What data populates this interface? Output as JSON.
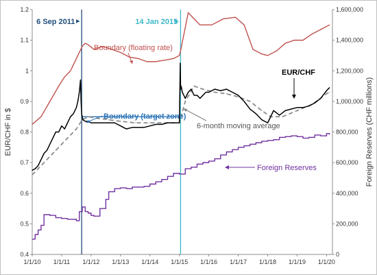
{
  "chart_data": {
    "type": "line",
    "xlabel": "",
    "ylabel": "EUR/CHF in $",
    "y2label": "Foreign Reserves (CHF millions)",
    "ylim": [
      0.4,
      1.2
    ],
    "y2lim": [
      0,
      1600000
    ],
    "xlim": [
      2010.0,
      2020.2
    ],
    "x_ticks": [
      "1/1/10",
      "1/1/11",
      "1/1/12",
      "1/1/13",
      "1/1/14",
      "1/1/15",
      "1/1/16",
      "1/1/17",
      "1/1/18",
      "1/1/19",
      "1/1/20"
    ],
    "y_ticks": [
      "0.4",
      "0.5",
      "0.6",
      "0.7",
      "0.8",
      "0.9",
      "1",
      "1.1",
      "1.2"
    ],
    "y2_ticks": [
      "0",
      "200,000",
      "400,000",
      "600,000",
      "800,000",
      "1,000,000",
      "1,200,000",
      "1,400,000",
      "1,600,000"
    ],
    "grid": false,
    "events": [
      {
        "label": "6 Sep 2011",
        "date": 2011.68,
        "color": "#1f4e79"
      },
      {
        "label": "14 Jan 2015",
        "date": 2015.04,
        "color": "#3bb7c9"
      }
    ],
    "annotations": {
      "boundary_floating": "Boundary (floating rate)",
      "boundary_target": "Boundary (target zone)",
      "moving_average": "6-month moving average",
      "eurchf": "EUR/CHF",
      "reserves": "Foreign Reserves"
    },
    "series": [
      {
        "name": "EUR/CHF",
        "axis": "left",
        "color": "#000000",
        "x": [
          2010.0,
          2010.1,
          2010.2,
          2010.3,
          2010.4,
          2010.5,
          2010.6,
          2010.7,
          2010.8,
          2010.9,
          2011.0,
          2011.1,
          2011.2,
          2011.3,
          2011.4,
          2011.5,
          2011.55,
          2011.6,
          2011.64,
          2011.66,
          2011.68,
          2011.72,
          2011.8,
          2011.9,
          2012.0,
          2012.2,
          2012.4,
          2012.6,
          2012.8,
          2013.0,
          2013.2,
          2013.4,
          2013.6,
          2013.8,
          2014.0,
          2014.2,
          2014.4,
          2014.6,
          2014.8,
          2015.0,
          2015.03,
          2015.04,
          2015.06,
          2015.1,
          2015.2,
          2015.3,
          2015.4,
          2015.5,
          2015.6,
          2015.7,
          2015.8,
          2015.9,
          2016.0,
          2016.2,
          2016.4,
          2016.6,
          2016.8,
          2017.0,
          2017.2,
          2017.4,
          2017.6,
          2017.8,
          2018.0,
          2018.2,
          2018.4,
          2018.6,
          2018.8,
          2019.0,
          2019.2,
          2019.4,
          2019.6,
          2019.8,
          2020.0,
          2020.1
        ],
        "values": [
          0.675,
          0.68,
          0.69,
          0.71,
          0.73,
          0.74,
          0.76,
          0.78,
          0.8,
          0.8,
          0.82,
          0.81,
          0.83,
          0.85,
          0.86,
          0.88,
          0.9,
          0.93,
          0.97,
          0.9,
          0.86,
          0.84,
          0.835,
          0.835,
          0.83,
          0.83,
          0.83,
          0.83,
          0.83,
          0.82,
          0.81,
          0.815,
          0.815,
          0.815,
          0.82,
          0.825,
          0.825,
          0.83,
          0.83,
          0.83,
          1.025,
          0.94,
          0.95,
          0.93,
          0.91,
          0.93,
          0.94,
          0.92,
          0.92,
          0.91,
          0.92,
          0.93,
          0.93,
          0.94,
          0.935,
          0.94,
          0.93,
          0.92,
          0.9,
          0.875,
          0.86,
          0.84,
          0.83,
          0.87,
          0.855,
          0.87,
          0.875,
          0.88,
          0.88,
          0.885,
          0.895,
          0.91,
          0.935,
          0.945
        ]
      },
      {
        "name": "6-month moving average",
        "axis": "left",
        "color": "#8c8c8c",
        "dashed": true,
        "x": [
          2010.0,
          2010.4,
          2010.8,
          2011.2,
          2011.5,
          2011.7,
          2011.9,
          2012.2,
          2012.6,
          2013.0,
          2013.5,
          2014.0,
          2014.5,
          2015.0,
          2015.2,
          2015.5,
          2015.8,
          2016.2,
          2016.6,
          2017.0,
          2017.4,
          2017.8,
          2018.1,
          2018.5,
          2019.0,
          2019.5,
          2020.0,
          2020.1
        ],
        "values": [
          0.66,
          0.7,
          0.74,
          0.78,
          0.81,
          0.84,
          0.85,
          0.845,
          0.84,
          0.835,
          0.83,
          0.83,
          0.83,
          0.83,
          0.9,
          0.95,
          0.94,
          0.93,
          0.925,
          0.915,
          0.9,
          0.87,
          0.85,
          0.85,
          0.87,
          0.89,
          0.925,
          0.93
        ]
      },
      {
        "name": "Boundary (floating rate)",
        "axis": "left",
        "color": "#c0504d",
        "x": [
          2010.0,
          2010.3,
          2010.6,
          2010.9,
          2011.1,
          2011.3,
          2011.5,
          2011.7,
          2011.8,
          2011.9,
          2012.1,
          2012.4,
          2012.7,
          2013.0,
          2013.3,
          2013.6,
          2013.9,
          2014.2,
          2014.5,
          2014.8,
          2015.0,
          2015.04,
          2015.3,
          2015.5,
          2015.7,
          2015.9,
          2016.1,
          2016.5,
          2016.9,
          2017.2,
          2017.5,
          2017.8,
          2018.0,
          2018.3,
          2018.6,
          2018.9,
          2019.2,
          2019.5,
          2019.8,
          2020.1
        ],
        "values": [
          0.825,
          0.85,
          0.9,
          0.95,
          0.98,
          1.0,
          1.04,
          1.08,
          1.09,
          1.085,
          1.07,
          1.08,
          1.07,
          1.06,
          1.045,
          1.04,
          1.03,
          1.03,
          1.035,
          1.04,
          1.05,
          1.065,
          1.19,
          1.17,
          1.15,
          1.15,
          1.15,
          1.17,
          1.175,
          1.15,
          1.07,
          1.055,
          1.05,
          1.065,
          1.09,
          1.1,
          1.1,
          1.12,
          1.135,
          1.15
        ]
      },
      {
        "name": "Boundary (target zone)",
        "axis": "left",
        "color": "#2e75b6",
        "x": [
          2011.68,
          2015.04
        ],
        "values": [
          0.85,
          0.85
        ]
      },
      {
        "name": "Foreign Reserves",
        "axis": "right",
        "color": "#7030a0",
        "step": true,
        "x": [
          2010.0,
          2010.1,
          2010.2,
          2010.3,
          2010.4,
          2010.6,
          2010.8,
          2011.0,
          2011.2,
          2011.4,
          2011.5,
          2011.6,
          2011.7,
          2011.8,
          2011.9,
          2012.0,
          2012.1,
          2012.3,
          2012.5,
          2012.6,
          2012.8,
          2013.0,
          2013.2,
          2013.4,
          2013.6,
          2013.8,
          2014.0,
          2014.2,
          2014.4,
          2014.6,
          2014.8,
          2015.0,
          2015.2,
          2015.4,
          2015.6,
          2015.8,
          2016.0,
          2016.2,
          2016.4,
          2016.6,
          2016.8,
          2017.0,
          2017.2,
          2017.4,
          2017.6,
          2017.8,
          2018.0,
          2018.2,
          2018.4,
          2018.6,
          2018.8,
          2019.0,
          2019.2,
          2019.4,
          2019.6,
          2019.8,
          2020.0,
          2020.1
        ],
        "values": [
          100000,
          130000,
          160000,
          190000,
          260000,
          255000,
          240000,
          235000,
          230000,
          230000,
          220000,
          280000,
          310000,
          280000,
          270000,
          255000,
          250000,
          300000,
          360000,
          410000,
          430000,
          435000,
          430000,
          440000,
          440000,
          445000,
          460000,
          475000,
          490000,
          510000,
          530000,
          525000,
          560000,
          570000,
          590000,
          600000,
          610000,
          625000,
          650000,
          670000,
          685000,
          700000,
          710000,
          720000,
          730000,
          740000,
          745000,
          750000,
          765000,
          770000,
          775000,
          770000,
          760000,
          765000,
          780000,
          775000,
          790000,
          785000
        ]
      }
    ]
  }
}
